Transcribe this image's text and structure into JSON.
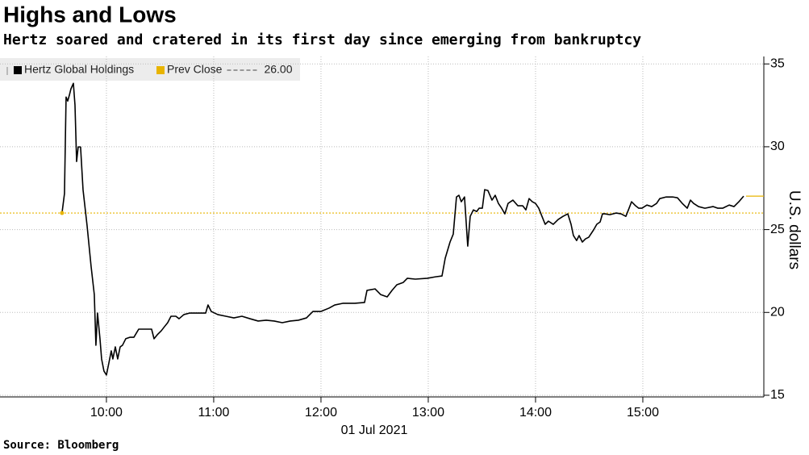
{
  "chart_data": {
    "type": "line",
    "title": "Highs and Lows",
    "subtitle": "Hertz soared and cratered in its first day since emerging from bankruptcy",
    "x_axis_label": "01 Jul 2021",
    "y_axis_label": "U.S. dollars",
    "source": "Source: Bloomberg",
    "xlim": [
      9.008,
      16.128
    ],
    "xticks": [
      {
        "value": 10,
        "label": "10:00"
      },
      {
        "value": 11,
        "label": "11:00"
      },
      {
        "value": 12,
        "label": "12:00"
      },
      {
        "value": 13,
        "label": "13:00"
      },
      {
        "value": 14,
        "label": "14:00"
      },
      {
        "value": 15,
        "label": "15:00"
      }
    ],
    "ylim": [
      14.9,
      35.45
    ],
    "yticks": [
      15,
      20,
      25,
      30,
      35
    ],
    "grid": true,
    "y_axis_side": "right",
    "reference_line": {
      "name": "Prev Close",
      "value": 26,
      "label": "26.00",
      "color": "#e8b400"
    },
    "x": [
      9.586,
      9.609,
      9.624,
      9.639,
      9.654,
      9.669,
      9.692,
      9.707,
      9.722,
      9.737,
      9.759,
      9.782,
      9.82,
      9.857,
      9.887,
      9.902,
      9.917,
      9.94,
      9.955,
      9.977,
      10.0,
      10.023,
      10.045,
      10.06,
      10.083,
      10.105,
      10.128,
      10.15,
      10.18,
      10.218,
      10.256,
      10.301,
      10.361,
      10.421,
      10.444,
      10.474,
      10.511,
      10.541,
      10.571,
      10.602,
      10.647,
      10.677,
      10.722,
      10.774,
      10.85,
      10.925,
      10.947,
      10.977,
      11.038,
      11.113,
      11.188,
      11.263,
      11.338,
      11.414,
      11.489,
      11.564,
      11.639,
      11.714,
      11.789,
      11.865,
      11.925,
      12.0,
      12.075,
      12.128,
      12.203,
      12.316,
      12.406,
      12.429,
      12.504,
      12.556,
      12.617,
      12.662,
      12.707,
      12.767,
      12.805,
      12.88,
      12.992,
      13.068,
      13.128,
      13.158,
      13.203,
      13.233,
      13.263,
      13.286,
      13.308,
      13.338,
      13.368,
      13.391,
      13.421,
      13.451,
      13.474,
      13.504,
      13.526,
      13.556,
      13.594,
      13.624,
      13.654,
      13.684,
      13.714,
      13.744,
      13.789,
      13.835,
      13.88,
      13.91,
      13.94,
      13.97,
      14.0,
      14.03,
      14.06,
      14.09,
      14.12,
      14.165,
      14.211,
      14.256,
      14.301,
      14.331,
      14.353,
      14.383,
      14.406,
      14.436,
      14.466,
      14.496,
      14.541,
      14.571,
      14.602,
      14.624,
      14.647,
      14.692,
      14.752,
      14.797,
      14.842,
      14.872,
      14.895,
      14.932,
      14.962,
      14.992,
      15.038,
      15.083,
      15.128,
      15.158,
      15.218,
      15.278,
      15.323,
      15.368,
      15.414,
      15.444,
      15.474,
      15.519,
      15.579,
      15.654,
      15.699,
      15.744,
      15.805,
      15.85,
      15.895,
      15.94
    ],
    "series": [
      {
        "name": "Hertz Global Holdings",
        "color": "#000000",
        "values": [
          26.0,
          27.17,
          33.0,
          32.76,
          33.1,
          33.49,
          33.83,
          32.52,
          29.11,
          29.99,
          29.99,
          27.41,
          25.22,
          22.79,
          21.08,
          18.02,
          19.96,
          18.41,
          17.19,
          16.46,
          16.22,
          16.95,
          17.68,
          17.19,
          17.92,
          17.19,
          17.92,
          18.02,
          18.41,
          18.5,
          18.5,
          18.99,
          18.99,
          18.99,
          18.41,
          18.65,
          18.89,
          19.14,
          19.38,
          19.77,
          19.77,
          19.62,
          19.87,
          19.96,
          19.96,
          19.96,
          20.45,
          20.06,
          19.87,
          19.77,
          19.67,
          19.77,
          19.62,
          19.48,
          19.53,
          19.48,
          19.38,
          19.48,
          19.53,
          19.67,
          20.06,
          20.06,
          20.26,
          20.45,
          20.55,
          20.55,
          20.6,
          21.33,
          21.42,
          21.08,
          20.94,
          21.33,
          21.67,
          21.81,
          22.06,
          22.01,
          22.06,
          22.15,
          22.2,
          23.27,
          24.25,
          24.73,
          26.97,
          27.07,
          26.68,
          26.97,
          24.0,
          25.8,
          26.19,
          26.09,
          26.29,
          26.29,
          27.41,
          27.36,
          26.78,
          27.07,
          26.58,
          26.29,
          25.95,
          26.58,
          26.78,
          26.44,
          26.44,
          26.19,
          26.87,
          26.68,
          26.58,
          26.29,
          25.8,
          25.32,
          25.51,
          25.32,
          25.61,
          25.8,
          25.95,
          25.32,
          24.64,
          24.34,
          24.64,
          24.25,
          24.44,
          24.54,
          24.98,
          25.32,
          25.46,
          25.95,
          25.95,
          25.9,
          26.0,
          25.95,
          25.8,
          26.29,
          26.68,
          26.44,
          26.29,
          26.29,
          26.48,
          26.39,
          26.58,
          26.87,
          26.97,
          26.97,
          26.92,
          26.58,
          26.29,
          26.78,
          26.58,
          26.39,
          26.29,
          26.39,
          26.29,
          26.29,
          26.48,
          26.39,
          26.68,
          27.02
        ]
      }
    ]
  }
}
